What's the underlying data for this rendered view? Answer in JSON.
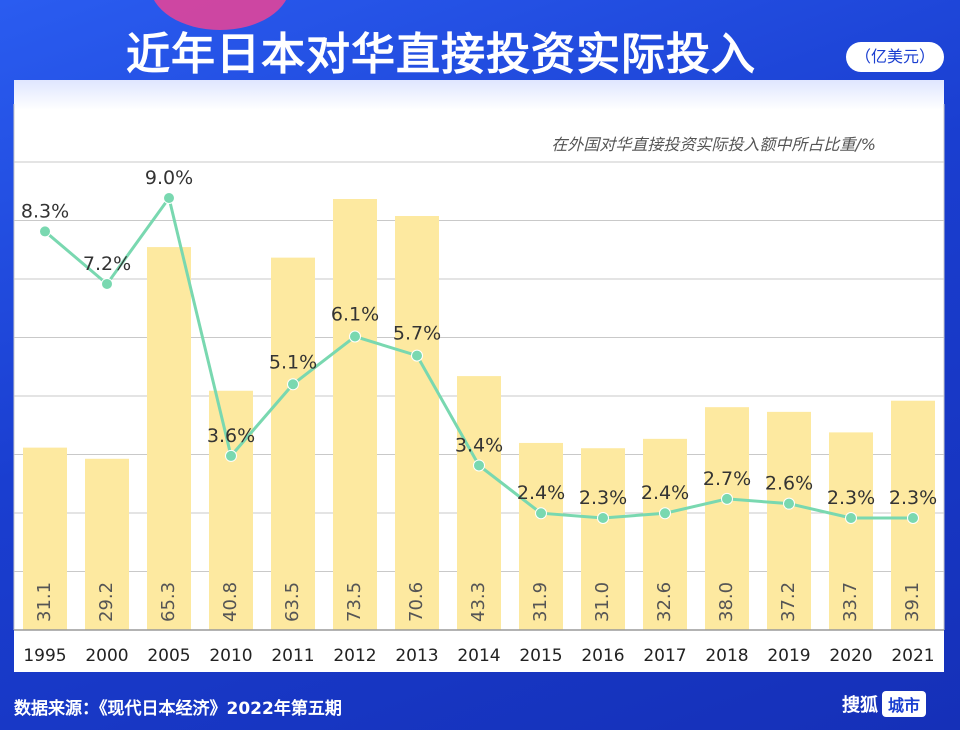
{
  "header": {
    "title": "近年日本对华直接投资实际投入",
    "unit": "（亿美元）"
  },
  "footer": {
    "source": "数据来源：《现代日本经济》2022年第五期",
    "brand": "搜狐",
    "brand_tag": "城市"
  },
  "colors": {
    "bar": "#fde9a0",
    "line": "#79d8b0",
    "background": "#1f45d6"
  },
  "chart_data": {
    "type": "bar",
    "categories": [
      "1995",
      "2000",
      "2005",
      "2010",
      "2011",
      "2012",
      "2013",
      "2014",
      "2015",
      "2016",
      "2017",
      "2018",
      "2019",
      "2020",
      "2021"
    ],
    "bar_values": [
      31.1,
      29.2,
      65.3,
      40.8,
      63.5,
      73.5,
      70.6,
      43.3,
      31.9,
      31.0,
      32.6,
      38.0,
      37.2,
      33.7,
      39.1
    ],
    "bar_labels": [
      "31.1",
      "29.2",
      "65.3",
      "40.8",
      "63.5",
      "73.5",
      "70.6",
      "43.3",
      "31.9",
      "31.0",
      "32.6",
      "38.0",
      "37.2",
      "33.7",
      "39.1"
    ],
    "line_label": "在外国对华直接投资实际投入额中所占比重/%",
    "line_values": [
      8.3,
      7.2,
      9.0,
      3.6,
      5.1,
      6.1,
      5.7,
      3.4,
      2.4,
      2.3,
      2.4,
      2.7,
      2.6,
      2.3,
      2.3
    ],
    "line_labels": [
      "8.3%",
      "7.2%",
      "9.0%",
      "3.6%",
      "5.1%",
      "6.1%",
      "5.7%",
      "3.4%",
      "2.4%",
      "2.3%",
      "2.4%",
      "2.7%",
      "2.6%",
      "2.3%",
      "2.3%"
    ],
    "ylim": [
      0,
      80
    ],
    "line_ylim": [
      0,
      10
    ],
    "grid": true
  }
}
